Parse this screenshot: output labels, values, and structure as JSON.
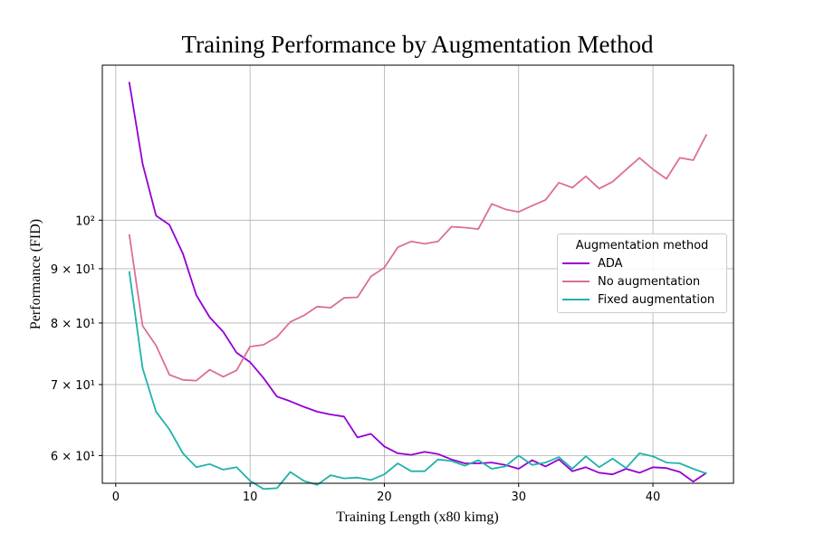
{
  "chart_data": {
    "type": "line",
    "title": "Training Performance by Augmentation Method",
    "xlabel": "Training Length (x80 kimg)",
    "ylabel": "Performance (FID)",
    "yscale": "log",
    "xlim": [
      -1,
      46
    ],
    "ylim": [
      56.5,
      140
    ],
    "x_ticks": [
      0,
      10,
      20,
      30,
      40
    ],
    "y_ticks": [
      {
        "value": 60,
        "label": "6 × 10¹"
      },
      {
        "value": 70,
        "label": "7 × 10¹"
      },
      {
        "value": 80,
        "label": "8 × 10¹"
      },
      {
        "value": 90,
        "label": "9 × 10¹"
      },
      {
        "value": 100,
        "label": "10²"
      }
    ],
    "grid": true,
    "legend": {
      "title": "Augmentation method",
      "placement": "center-right"
    },
    "x": [
      1,
      2,
      3,
      4,
      5,
      6,
      7,
      8,
      9,
      10,
      11,
      12,
      13,
      14,
      15,
      16,
      17,
      18,
      19,
      20,
      21,
      22,
      23,
      24,
      25,
      26,
      27,
      28,
      29,
      30,
      31,
      32,
      33,
      34,
      35,
      36,
      37,
      38,
      39,
      40,
      41,
      42,
      43,
      44
    ],
    "series": [
      {
        "name": "ADA",
        "color": "#9400D3",
        "values": [
          135,
          113,
          101,
          99,
          93,
          85,
          81,
          78.5,
          75,
          73.5,
          71,
          68.2,
          67.5,
          66.7,
          66,
          65.6,
          65.3,
          62.4,
          62.9,
          61.2,
          60.3,
          60.1,
          60.5,
          60.2,
          59.5,
          59,
          59,
          59.1,
          58.8,
          58.3,
          59.4,
          58.6,
          59.5,
          58,
          58.5,
          57.8,
          57.6,
          58.3,
          57.8,
          58.5,
          58.4,
          57.9,
          56.7,
          57.8
        ]
      },
      {
        "name": "No augmentation",
        "color": "#DB7093",
        "values": [
          97,
          79.5,
          76.2,
          71.5,
          70.7,
          70.6,
          72.3,
          71.2,
          72.2,
          76,
          76.3,
          77.6,
          80.2,
          81.3,
          82.9,
          82.7,
          84.5,
          84.6,
          88.5,
          90.2,
          94.3,
          95.5,
          95,
          95.5,
          98.6,
          98.4,
          98.1,
          103.6,
          102.4,
          101.8,
          103.2,
          104.5,
          108.5,
          107.3,
          110,
          107.1,
          108.7,
          111.6,
          114.5,
          111.7,
          109.4,
          114.5,
          113.9,
          120.5
        ]
      },
      {
        "name": "Fixed augmentation",
        "color": "#20B2AA",
        "values": [
          89.5,
          72.5,
          66,
          63.5,
          60.3,
          58.5,
          58.9,
          58.2,
          58.5,
          56.8,
          55.8,
          55.9,
          57.9,
          56.8,
          56.3,
          57.5,
          57.1,
          57.2,
          56.9,
          57.6,
          59,
          58,
          58,
          59.5,
          59.3,
          58.7,
          59.4,
          58.3,
          58.6,
          60,
          58.8,
          59.1,
          59.8,
          58.3,
          59.9,
          58.5,
          59.6,
          58.4,
          60.3,
          59.9,
          59.1,
          59,
          58.3,
          57.7
        ]
      }
    ]
  }
}
